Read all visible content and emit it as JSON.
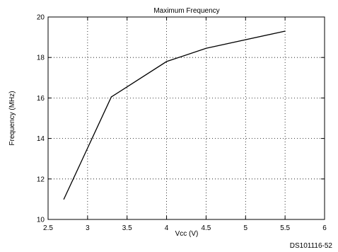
{
  "chart_data": {
    "type": "line",
    "title": "Maximum Frequency",
    "xlabel": "Vcc (V)",
    "ylabel": "Frequency (MHz)",
    "xlim": [
      2.5,
      6
    ],
    "ylim": [
      10,
      20
    ],
    "xticks": [
      "2.5",
      "3",
      "3.5",
      "4",
      "4.5",
      "5",
      "5.5",
      "6"
    ],
    "yticks": [
      "10",
      "12",
      "14",
      "16",
      "18",
      "20"
    ],
    "grid": true,
    "series": [
      {
        "x": [
          2.7,
          3.3,
          4.0,
          4.5,
          5.5
        ],
        "y": [
          11.0,
          16.05,
          17.8,
          18.45,
          19.3
        ]
      }
    ],
    "colors": {
      "line": "#000000",
      "grid": "#000000"
    }
  },
  "figure_id": "DS101116-52"
}
